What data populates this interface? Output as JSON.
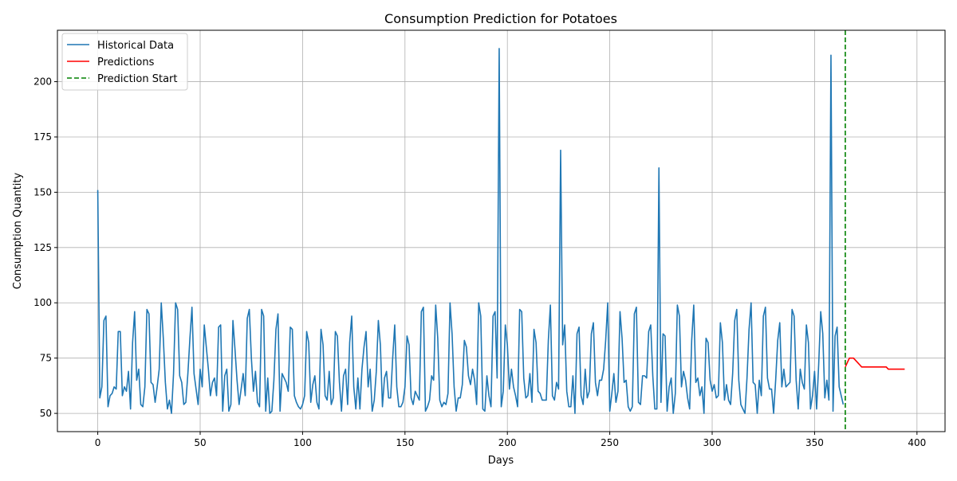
{
  "chart_data": {
    "type": "line",
    "title": "Consumption Prediction for Potatoes",
    "xlabel": "Days",
    "ylabel": "Consumption Quantity",
    "xlim": [
      -19.7,
      413.7
    ],
    "ylim": [
      41.75,
      223.25
    ],
    "xticks": [
      0,
      50,
      100,
      150,
      200,
      250,
      300,
      350,
      400
    ],
    "yticks": [
      50,
      75,
      100,
      125,
      150,
      175,
      200
    ],
    "grid": true,
    "legend_position": "top-left",
    "series": [
      {
        "name": "Historical Data",
        "color": "#1f77b4",
        "x_start": 0,
        "values": [
          151,
          57,
          62,
          92,
          94,
          53,
          58,
          59,
          62,
          61,
          87,
          87,
          58,
          62,
          60,
          69,
          52,
          82,
          96,
          65,
          70,
          54,
          53,
          62,
          97,
          95,
          64,
          63,
          55,
          62,
          70,
          100,
          84,
          64,
          52,
          56,
          50,
          68,
          100,
          97,
          67,
          64,
          54,
          55,
          68,
          84,
          98,
          68,
          61,
          54,
          70,
          62,
          90,
          80,
          70,
          58,
          64,
          66,
          58,
          89,
          90,
          51,
          67,
          70,
          51,
          54,
          92,
          79,
          65,
          54,
          61,
          68,
          58,
          93,
          97,
          75,
          60,
          69,
          55,
          53,
          97,
          94,
          51,
          66,
          50,
          51,
          65,
          88,
          95,
          51,
          68,
          66,
          64,
          60,
          89,
          88,
          58,
          55,
          53,
          52,
          54,
          58,
          87,
          82,
          55,
          63,
          67,
          55,
          52,
          88,
          81,
          58,
          56,
          69,
          54,
          57,
          87,
          85,
          64,
          51,
          67,
          70,
          54,
          82,
          94,
          62,
          52,
          66,
          52,
          70,
          80,
          87,
          62,
          70,
          51,
          56,
          69,
          92,
          81,
          53,
          66,
          69,
          57,
          57,
          75,
          90,
          62,
          53,
          53,
          55,
          62,
          85,
          81,
          57,
          54,
          60,
          58,
          56,
          96,
          98,
          51,
          53,
          56,
          67,
          65,
          99,
          84,
          56,
          53,
          55,
          54,
          59,
          100,
          86,
          62,
          51,
          57,
          57,
          63,
          83,
          80,
          67,
          63,
          70,
          65,
          54,
          100,
          94,
          52,
          51,
          67,
          58,
          53,
          94,
          96,
          66,
          215,
          53,
          60,
          90,
          81,
          61,
          70,
          62,
          58,
          53,
          97,
          96,
          66,
          57,
          58,
          68,
          55,
          88,
          82,
          60,
          59,
          56,
          56,
          56,
          83,
          99,
          58,
          56,
          64,
          61,
          169,
          81,
          90,
          60,
          53,
          53,
          67,
          50,
          86,
          89,
          58,
          54,
          70,
          57,
          60,
          86,
          91,
          64,
          58,
          65,
          65,
          70,
          83,
          100,
          51,
          59,
          68,
          55,
          60,
          96,
          84,
          64,
          65,
          53,
          51,
          53,
          95,
          98,
          55,
          54,
          67,
          67,
          66,
          87,
          90,
          67,
          52,
          52,
          161,
          55,
          86,
          85,
          51,
          62,
          66,
          50,
          59,
          99,
          94,
          62,
          69,
          65,
          57,
          52,
          83,
          99,
          64,
          66,
          58,
          62,
          50,
          84,
          82,
          65,
          60,
          63,
          57,
          58,
          91,
          82,
          56,
          63,
          56,
          54,
          68,
          92,
          97,
          65,
          54,
          52,
          50,
          66,
          88,
          100,
          64,
          63,
          50,
          65,
          58,
          94,
          98,
          66,
          61,
          61,
          50,
          65,
          83,
          91,
          62,
          70,
          62,
          63,
          64,
          97,
          94,
          65,
          52,
          70,
          64,
          61,
          90,
          82,
          52,
          58,
          69,
          52,
          72,
          96,
          86,
          57,
          65,
          56,
          212,
          51,
          85,
          89,
          62,
          58,
          54
        ]
      },
      {
        "name": "Predictions",
        "color": "#ff0000",
        "x": [
          365,
          366,
          367,
          368,
          369,
          370,
          371,
          372,
          373,
          374,
          375,
          376,
          377,
          378,
          379,
          380,
          381,
          382,
          383,
          384,
          385,
          386,
          387,
          388,
          389,
          390,
          391,
          392,
          393,
          394
        ],
        "values": [
          71,
          73,
          75,
          75,
          75,
          74,
          73,
          72,
          71,
          71,
          71,
          71,
          71,
          71,
          71,
          71,
          71,
          71,
          71,
          71,
          71,
          70,
          70,
          70,
          70,
          70,
          70,
          70,
          70,
          70
        ]
      },
      {
        "name": "Prediction Start",
        "color": "#008000",
        "style": "dashed",
        "x_value": 365
      }
    ]
  }
}
